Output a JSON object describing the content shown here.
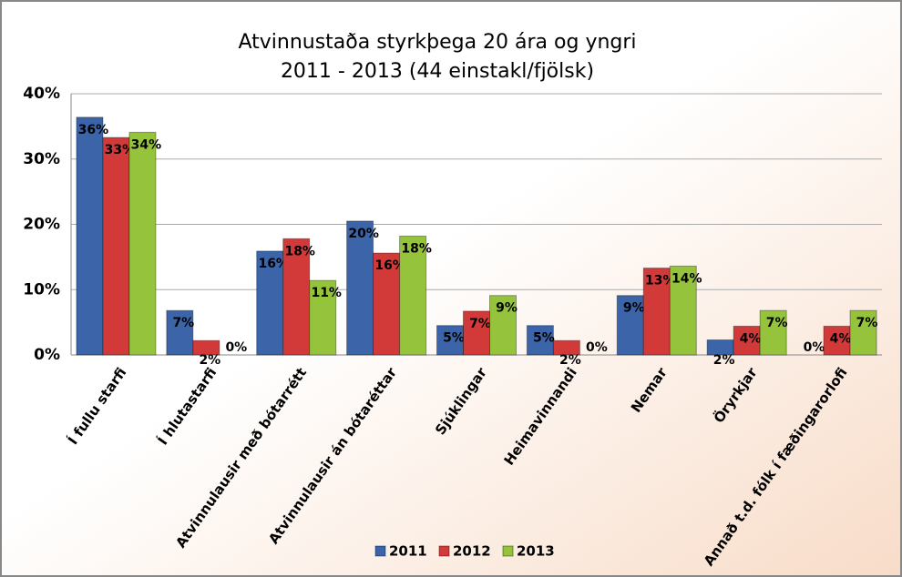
{
  "chart_data": {
    "type": "bar",
    "title": "Atvinnustaða styrkþega 20 ára og yngri",
    "subtitle": "2011 - 2013 (44 einstakl/fjölsk)",
    "categories": [
      "Í fullu starfi",
      "Í hlutastarfi",
      "Atvinnulausir með bótarrétt",
      "Atvinnulausir án bótaréttar",
      "Sjúklingar",
      "Heimavinnandi",
      "Nemar",
      "Öryrkjar",
      "Annað t.d. fólk í fæðingarorlofi"
    ],
    "series": [
      {
        "name": "2011",
        "color": "#3b64a9",
        "values": [
          36.4,
          6.8,
          15.9,
          20.5,
          4.5,
          4.5,
          9.1,
          2.3,
          0
        ],
        "value_labels": [
          "36%",
          "7%",
          "16%",
          "20%",
          "5%",
          "5%",
          "9%",
          "2%",
          "0%"
        ]
      },
      {
        "name": "2012",
        "color": "#d23a3a",
        "values": [
          33.3,
          2.2,
          17.8,
          15.6,
          6.7,
          2.2,
          13.3,
          4.4,
          4.4
        ],
        "value_labels": [
          "33%",
          "2%",
          "18%",
          "16%",
          "7%",
          "2%",
          "13%",
          "4%",
          "4%"
        ]
      },
      {
        "name": "2013",
        "color": "#96c33c",
        "values": [
          34.1,
          0,
          11.4,
          18.2,
          9.1,
          0,
          13.6,
          6.8,
          6.8
        ],
        "value_labels": [
          "34%",
          "0%",
          "11%",
          "18%",
          "9%",
          "0%",
          "14%",
          "7%",
          "7%"
        ]
      }
    ],
    "ylim": [
      0,
      40
    ],
    "yticks": [
      {
        "value": 0,
        "label": "0%"
      },
      {
        "value": 10,
        "label": "10%"
      },
      {
        "value": 20,
        "label": "20%"
      },
      {
        "value": 30,
        "label": "30%"
      },
      {
        "value": 40,
        "label": "40%"
      }
    ],
    "grid": true,
    "legend": "bottom"
  }
}
